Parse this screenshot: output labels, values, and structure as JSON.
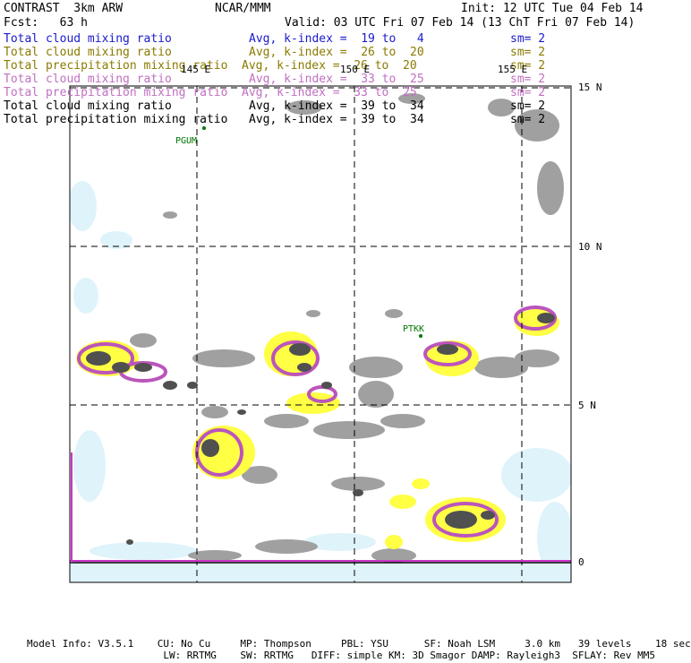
{
  "header": {
    "product": "CONTRAST  3km ARW",
    "org": "NCAR/MMM",
    "init": "Init: 12 UTC Tue 04 Feb 14",
    "fcst": "Fcst:   63 h",
    "valid": "Valid: 03 UTC Fri 07 Feb 14 (13 ChT Fri 07 Feb 14)"
  },
  "legend": [
    {
      "field": "Total cloud mixing ratio",
      "stat": "Avg, k-index =  19 to   4",
      "sm": "sm= 2",
      "color": "#1a1acc"
    },
    {
      "field": "Total cloud mixing ratio",
      "stat": "Avg, k-index =  26 to  20",
      "sm": "sm= 2",
      "color": "#8a7a00"
    },
    {
      "field": "Total precipitation mixing ratio",
      "stat": "Avg, k-index =  26 to  20",
      "sm": "sm= 2",
      "color": "#8a7a00"
    },
    {
      "field": "Total cloud mixing ratio",
      "stat": "Avg, k-index =  33 to  25",
      "sm": "sm= 2",
      "color": "#c070c0"
    },
    {
      "field": "Total precipitation mixing ratio",
      "stat": "Avg, k-index =  33 to  25",
      "sm": "sm= 2",
      "color": "#c070c0"
    },
    {
      "field": "Total cloud mixing ratio",
      "stat": "Avg, k-index =  39 to  34",
      "sm": "sm= 2",
      "color": "#000000"
    },
    {
      "field": "Total precipitation mixing ratio",
      "stat": "Avg, k-index =  39 to  34",
      "sm": "sm= 2",
      "color": "#000000"
    }
  ],
  "grid": {
    "lon_labels": [
      "145 E",
      "150 E",
      "155 E"
    ],
    "lat_labels": [
      "15 N",
      "10 N",
      "5 N",
      "0"
    ]
  },
  "stations": [
    {
      "id": "PGUM"
    },
    {
      "id": "PTKK"
    }
  ],
  "colors": {
    "gray": "#a0a0a0",
    "dark": "#505050",
    "yellow": "#ffff44",
    "magenta": "#bb55bb",
    "lightblue": "#dff3fb",
    "equator": "#cc33cc",
    "station": "#007700"
  },
  "footer": {
    "line1": "Model Info: V3.5.1    CU: No Cu     MP: Thompson     PBL: YSU      SF: Noah LSM     3.0 km   39 levels    18 sec",
    "line2": "                       LW: RRTMG    SW: RRTMG   DIFF: simple KM: 3D Smagor DAMP: Rayleigh3  SFLAY: Rev MM5"
  }
}
